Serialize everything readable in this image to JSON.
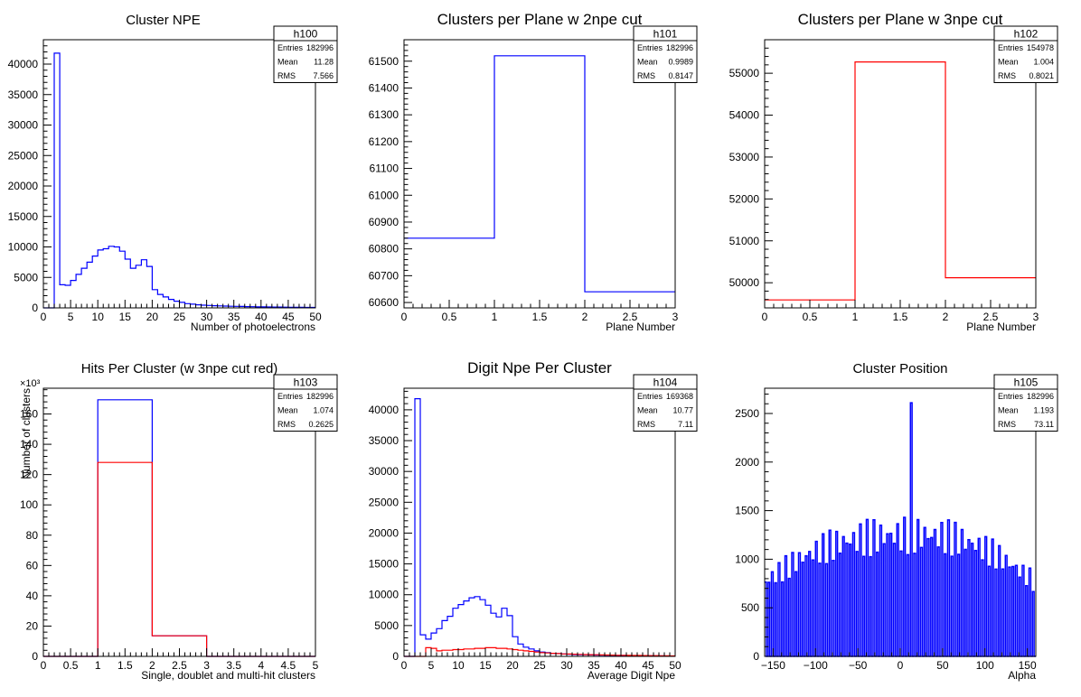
{
  "chart_data": [
    {
      "id": "h100",
      "type": "histogram",
      "title": "Cluster NPE",
      "xlabel": "Number of photoelectrons",
      "ylabel": "",
      "xlim": [
        0,
        50
      ],
      "ylim": [
        0,
        44000
      ],
      "exponent": "",
      "xticks": [
        0,
        5,
        10,
        15,
        20,
        25,
        30,
        35,
        40,
        45,
        50
      ],
      "yticks": [
        0,
        5000,
        10000,
        15000,
        20000,
        25000,
        30000,
        35000,
        40000
      ],
      "stats": {
        "name": "h100",
        "rows": [
          [
            "Entries",
            "182996"
          ],
          [
            "Mean",
            "11.28"
          ],
          [
            "RMS",
            "7.566"
          ]
        ]
      },
      "series": [
        {
          "color": "#0000ff",
          "edges_start": 0,
          "bin_width": 1,
          "values": [
            0,
            0,
            41800,
            3800,
            3700,
            4500,
            5500,
            6500,
            7500,
            8500,
            9500,
            9700,
            10100,
            10000,
            9300,
            8000,
            6500,
            7000,
            7900,
            6800,
            3000,
            2200,
            1800,
            1400,
            1100,
            900,
            700,
            600,
            500,
            450,
            400,
            350,
            330,
            300,
            270,
            250,
            230,
            210,
            190,
            170,
            160,
            150,
            140,
            130,
            120,
            110,
            100,
            90,
            80,
            70
          ]
        }
      ]
    },
    {
      "id": "h101",
      "type": "histogram",
      "title": "Clusters per Plane w 2npe cut",
      "xlabel": "Plane Number",
      "ylabel": "",
      "xlim": [
        0,
        3
      ],
      "ylim": [
        60580,
        61580
      ],
      "exponent": "",
      "xticks": [
        0,
        0.5,
        1,
        1.5,
        2,
        2.5,
        3
      ],
      "yticks": [
        60600,
        60700,
        60800,
        60900,
        61000,
        61100,
        61200,
        61300,
        61400,
        61500
      ],
      "stats": {
        "name": "h101",
        "rows": [
          [
            "Entries",
            "182996"
          ],
          [
            "Mean",
            "0.9989"
          ],
          [
            "RMS",
            "0.8147"
          ]
        ]
      },
      "series": [
        {
          "color": "#0000ff",
          "edges_start": 0,
          "bin_width": 1,
          "values": [
            60840,
            61520,
            60640
          ]
        }
      ]
    },
    {
      "id": "h102",
      "type": "histogram",
      "title": "Clusters per Plane w 3npe cut",
      "xlabel": "Plane Number",
      "ylabel": "",
      "xlim": [
        0,
        3
      ],
      "ylim": [
        49400,
        55800
      ],
      "exponent": "",
      "xticks": [
        0,
        0.5,
        1,
        1.5,
        2,
        2.5,
        3
      ],
      "yticks": [
        50000,
        51000,
        52000,
        53000,
        54000,
        55000
      ],
      "stats": {
        "name": "h102",
        "rows": [
          [
            "Entries",
            "154978"
          ],
          [
            "Mean",
            "1.004"
          ],
          [
            "RMS",
            "0.8021"
          ]
        ]
      },
      "series": [
        {
          "color": "#ff0000",
          "edges_start": 0,
          "bin_width": 1,
          "values": [
            49590,
            55270,
            50120
          ]
        }
      ]
    },
    {
      "id": "h103",
      "type": "histogram",
      "title": "Hits Per Cluster (w 3npe cut red)",
      "xlabel": "Single, doublet and multi-hit clusters",
      "ylabel": "Number of clusters",
      "xlim": [
        0,
        5
      ],
      "ylim": [
        0,
        177
      ],
      "exponent": "×10³",
      "xticks": [
        0,
        0.5,
        1,
        1.5,
        2,
        2.5,
        3,
        3.5,
        4,
        4.5,
        5
      ],
      "yticks": [
        0,
        20,
        40,
        60,
        80,
        100,
        120,
        140,
        160
      ],
      "stats": {
        "name": "h103",
        "rows": [
          [
            "Entries",
            "182996"
          ],
          [
            "Mean",
            "1.074"
          ],
          [
            "RMS",
            "0.2625"
          ]
        ]
      },
      "series": [
        {
          "color": "#0000ff",
          "edges_start": 0,
          "bin_width": 1,
          "values": [
            0,
            169.4,
            13.6,
            0,
            0
          ]
        },
        {
          "color": "#ff0000",
          "edges_start": 0,
          "bin_width": 1,
          "values": [
            0,
            128,
            13.6,
            0,
            0
          ]
        }
      ]
    },
    {
      "id": "h104",
      "type": "histogram",
      "title": "Digit Npe Per Cluster",
      "xlabel": "Average Digit Npe",
      "ylabel": "",
      "xlim": [
        0,
        50
      ],
      "ylim": [
        0,
        43500
      ],
      "exponent": "",
      "xticks": [
        0,
        5,
        10,
        15,
        20,
        25,
        30,
        35,
        40,
        45,
        50
      ],
      "yticks": [
        0,
        5000,
        10000,
        15000,
        20000,
        25000,
        30000,
        35000,
        40000
      ],
      "stats": {
        "name": "h104",
        "rows": [
          [
            "Entries",
            "169368"
          ],
          [
            "Mean",
            "10.77"
          ],
          [
            "RMS",
            "7.11"
          ]
        ]
      },
      "series": [
        {
          "color": "#0000ff",
          "edges_start": 0,
          "bin_width": 1,
          "values": [
            0,
            0,
            41800,
            3500,
            2800,
            3800,
            4500,
            5800,
            6500,
            7800,
            8400,
            9000,
            9500,
            9700,
            9200,
            8300,
            7000,
            6400,
            7800,
            6600,
            3200,
            2000,
            1500,
            1200,
            900,
            700,
            600,
            500,
            450,
            400,
            350,
            300,
            280,
            260,
            240,
            220,
            200,
            180,
            160,
            150,
            140,
            130,
            120,
            110,
            100,
            90,
            80,
            70,
            60,
            50
          ]
        },
        {
          "color": "#ff0000",
          "edges_start": 0,
          "bin_width": 1,
          "values": [
            0,
            0,
            0,
            0,
            1400,
            1300,
            900,
            1000,
            1000,
            1100,
            1100,
            1200,
            1200,
            1300,
            1300,
            1400,
            1400,
            1300,
            1300,
            1200,
            1100,
            1000,
            900,
            800,
            700,
            600,
            550,
            500,
            450,
            400,
            380,
            350,
            320,
            300,
            280,
            260,
            240,
            220,
            200,
            180,
            170,
            160,
            150,
            140,
            130,
            120,
            110,
            100,
            90,
            80
          ]
        }
      ]
    },
    {
      "id": "h105",
      "type": "histogram",
      "title": "Cluster Position",
      "xlabel": "Alpha",
      "ylabel": "",
      "xlim": [
        -160,
        160
      ],
      "ylim": [
        0,
        2760
      ],
      "exponent": "",
      "xticks": [
        -150,
        -100,
        -50,
        0,
        50,
        100,
        150
      ],
      "yticks": [
        0,
        500,
        1000,
        1500,
        2000,
        2500
      ],
      "stats": {
        "name": "h105",
        "rows": [
          [
            "Entries",
            "182996"
          ],
          [
            "Mean",
            "1.193"
          ],
          [
            "RMS",
            "73.11"
          ]
        ]
      },
      "series": [
        {
          "color": "#0000ff",
          "edges_start": -160,
          "bin_width": 2,
          "generator": "comb",
          "base": 1350,
          "decay": 140,
          "floor": 300,
          "peak": {
            "x": 13,
            "y": 2610
          }
        }
      ]
    }
  ]
}
